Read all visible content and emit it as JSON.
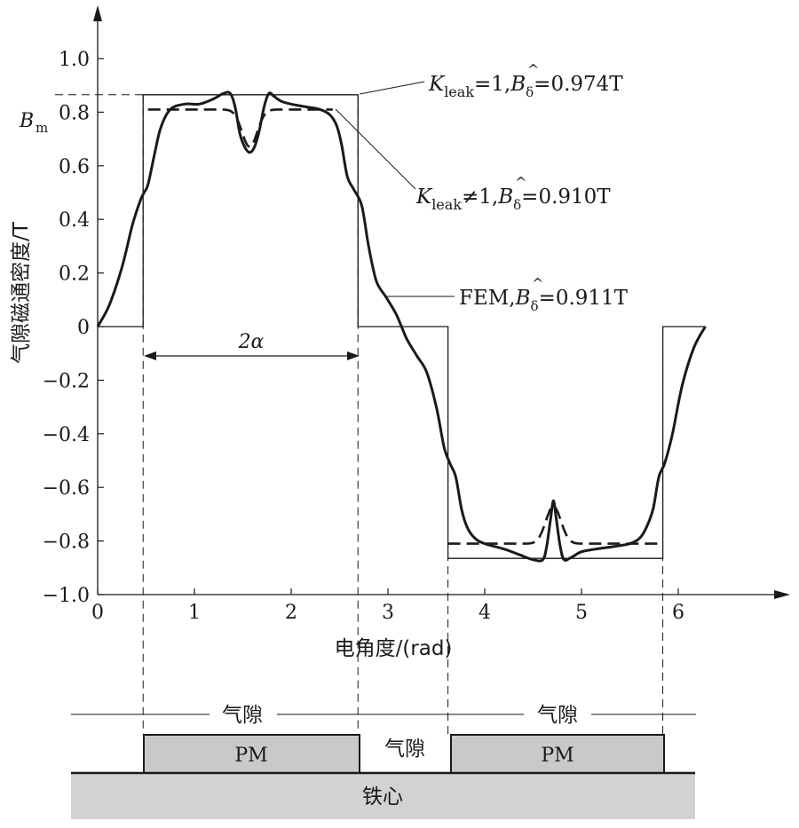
{
  "chart_data": {
    "type": "line",
    "xlabel": "电角度/(rad)",
    "ylabel": "气隙磁通密度/T",
    "xlim": [
      0,
      7.0
    ],
    "ylim": [
      -1.0,
      1.1
    ],
    "x_ticks": [
      0,
      1,
      2,
      3,
      4,
      5,
      6
    ],
    "y_ticks": [
      1.0,
      0.8,
      0.6,
      0.4,
      0.2,
      0,
      -0.2,
      -0.4,
      -0.6,
      -0.8,
      -1.0
    ],
    "y_tick_labels": [
      "1.0",
      "0.8",
      "0.6",
      "0.4",
      "0.2",
      "0",
      "−0.2",
      "−0.4",
      "−0.6",
      "−0.8",
      "−1.0"
    ],
    "bm_label": "B",
    "bm_subscript": "m",
    "bm_value": 0.8,
    "span_label": "2α",
    "span": [
      0.47,
      2.69
    ],
    "magnet_edges": [
      0.47,
      2.69,
      3.62,
      5.84
    ],
    "series": [
      {
        "name": "Kleak=1",
        "style": "thin-solid-square-wave",
        "x": [
          0,
          0.47,
          0.47,
          2.69,
          2.69,
          3.62,
          3.62,
          5.84,
          5.84,
          6.28
        ],
        "values": [
          0,
          0,
          0.865,
          0.865,
          0,
          0,
          -0.865,
          -0.865,
          0,
          0
        ]
      },
      {
        "name": "Kleak≠1",
        "style": "dashed",
        "segments": [
          {
            "x": [
              0.52,
              2.43
            ],
            "values": [
              0.81,
              0.81
            ],
            "dip": {
              "center": 1.57,
              "depth": 0.14,
              "width": 0.11
            }
          },
          {
            "x": [
              3.62,
              5.84
            ],
            "values": [
              -0.81,
              -0.81
            ],
            "dip": {
              "center": 4.71,
              "depth": -0.14,
              "width": 0.11
            }
          }
        ]
      },
      {
        "name": "FEM",
        "style": "thick-solid",
        "x": [
          0,
          0.12,
          0.25,
          0.36,
          0.44,
          0.48,
          0.52,
          0.58,
          0.65,
          0.75,
          0.9,
          1.05,
          1.2,
          1.3,
          1.37,
          1.42,
          1.47,
          1.52,
          1.57,
          1.62,
          1.67,
          1.72,
          1.77,
          1.82,
          1.9,
          2.0,
          2.15,
          2.3,
          2.4,
          2.47,
          2.52,
          2.58,
          2.65,
          2.73,
          2.8,
          2.88,
          2.98,
          3.08,
          3.14,
          3.2,
          3.3,
          3.4,
          3.5,
          3.58,
          3.64,
          3.7,
          3.76,
          3.82,
          3.9,
          4.0,
          4.2,
          4.35,
          4.5,
          4.6,
          4.64,
          4.68,
          4.71,
          4.74,
          4.78,
          4.82,
          4.9,
          5.0,
          5.15,
          5.35,
          5.5,
          5.6,
          5.67,
          5.74,
          5.8,
          5.86,
          5.94,
          6.04,
          6.16,
          6.28
        ],
        "values": [
          0,
          0.08,
          0.22,
          0.38,
          0.47,
          0.5,
          0.53,
          0.63,
          0.74,
          0.81,
          0.83,
          0.83,
          0.85,
          0.87,
          0.87,
          0.82,
          0.72,
          0.67,
          0.65,
          0.67,
          0.73,
          0.82,
          0.87,
          0.86,
          0.84,
          0.83,
          0.82,
          0.81,
          0.79,
          0.75,
          0.68,
          0.56,
          0.51,
          0.45,
          0.3,
          0.17,
          0.11,
          0.05,
          0.0,
          -0.05,
          -0.11,
          -0.17,
          -0.3,
          -0.45,
          -0.51,
          -0.56,
          -0.68,
          -0.75,
          -0.79,
          -0.81,
          -0.83,
          -0.85,
          -0.87,
          -0.87,
          -0.82,
          -0.72,
          -0.65,
          -0.72,
          -0.82,
          -0.87,
          -0.86,
          -0.84,
          -0.83,
          -0.82,
          -0.81,
          -0.79,
          -0.75,
          -0.68,
          -0.56,
          -0.51,
          -0.4,
          -0.22,
          -0.08,
          0
        ]
      }
    ],
    "annotations": [
      {
        "kind": "kleak1",
        "K": "K",
        "sub": "leak",
        "rest": "=1,",
        "B": "B",
        "hat": "^",
        "delta": "δ",
        "value": "=0.974T"
      },
      {
        "kind": "kleakne1",
        "K": "K",
        "sub": "leak",
        "rest": "≠1,",
        "B": "B",
        "hat": "^",
        "delta": "δ",
        "value": "=0.910T"
      },
      {
        "kind": "fem",
        "prefix": "FEM,",
        "B": "B",
        "hat": "^",
        "delta": "δ",
        "value": "=0.911T"
      }
    ]
  },
  "structure": {
    "air_gap_left": "气隙",
    "air_gap_middle": "气隙",
    "air_gap_right": "气隙",
    "pm_left": "PM",
    "pm_right": "PM",
    "core": "铁心"
  }
}
